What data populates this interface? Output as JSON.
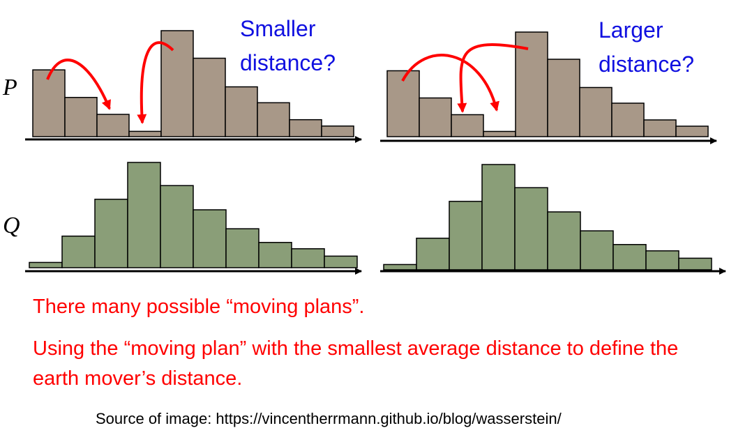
{
  "labels": {
    "p": "P",
    "q": "Q",
    "left_question": [
      "Smaller",
      "distance?"
    ],
    "right_question": [
      "Larger",
      "distance?"
    ]
  },
  "text": {
    "line1": "There many possible “moving plans”.",
    "line2": "Using the “moving plan” with the smallest average distance to define the earth mover’s distance.",
    "source": "Source of image: https://vincentherrmann.github.io/blog/wasserstein/"
  },
  "histograms": {
    "p_values": [
      6.3,
      3.7,
      2.1,
      0.5,
      10,
      7.4,
      4.7,
      3.2,
      1.6,
      1.0
    ],
    "q_values": [
      0.5,
      3.0,
      6.5,
      10,
      7.8,
      5.5,
      3.7,
      2.4,
      1.8,
      1.1
    ]
  },
  "colors": {
    "p_fill": "#a89888",
    "q_fill": "#8a9e78",
    "arrow": "#ff0000",
    "question_text": "#1010e0",
    "body_text": "#ff0000"
  }
}
